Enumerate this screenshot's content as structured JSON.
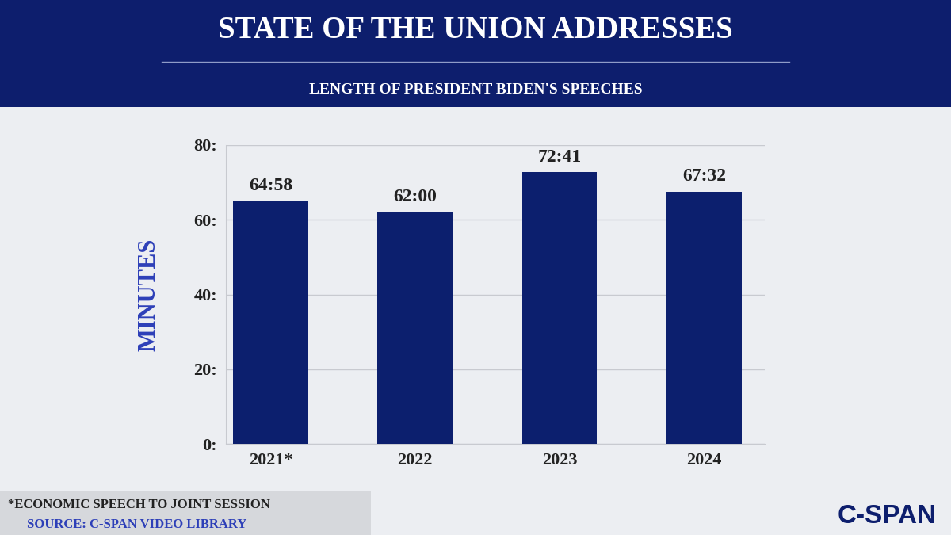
{
  "chart_data": {
    "type": "bar",
    "title": "STATE OF THE UNION ADDRESSES",
    "subtitle": "LENGTH OF PRESIDENT BIDEN'S SPEECHES",
    "ylabel": "MINUTES",
    "categories": [
      "2021*",
      "2022",
      "2023",
      "2024"
    ],
    "values": [
      64.967,
      62,
      72.683,
      67.533
    ],
    "value_labels": [
      "64:58",
      "62:00",
      "72:41",
      "67:32"
    ],
    "data_labels": true,
    "color": "#0c1f6e",
    "ylim": [
      0,
      80
    ],
    "yticks": [
      {
        "value": 0,
        "label": "0:"
      },
      {
        "value": 20,
        "label": "20:"
      },
      {
        "value": 40,
        "label": "40:"
      },
      {
        "value": 60,
        "label": "60:"
      },
      {
        "value": 80,
        "label": "80:"
      }
    ],
    "grid": true,
    "footnote": "*ECONOMIC SPEECH TO JOINT SESSION",
    "source": "SOURCE: C-SPAN VIDEO LIBRARY",
    "logo": "C-SPAN"
  }
}
